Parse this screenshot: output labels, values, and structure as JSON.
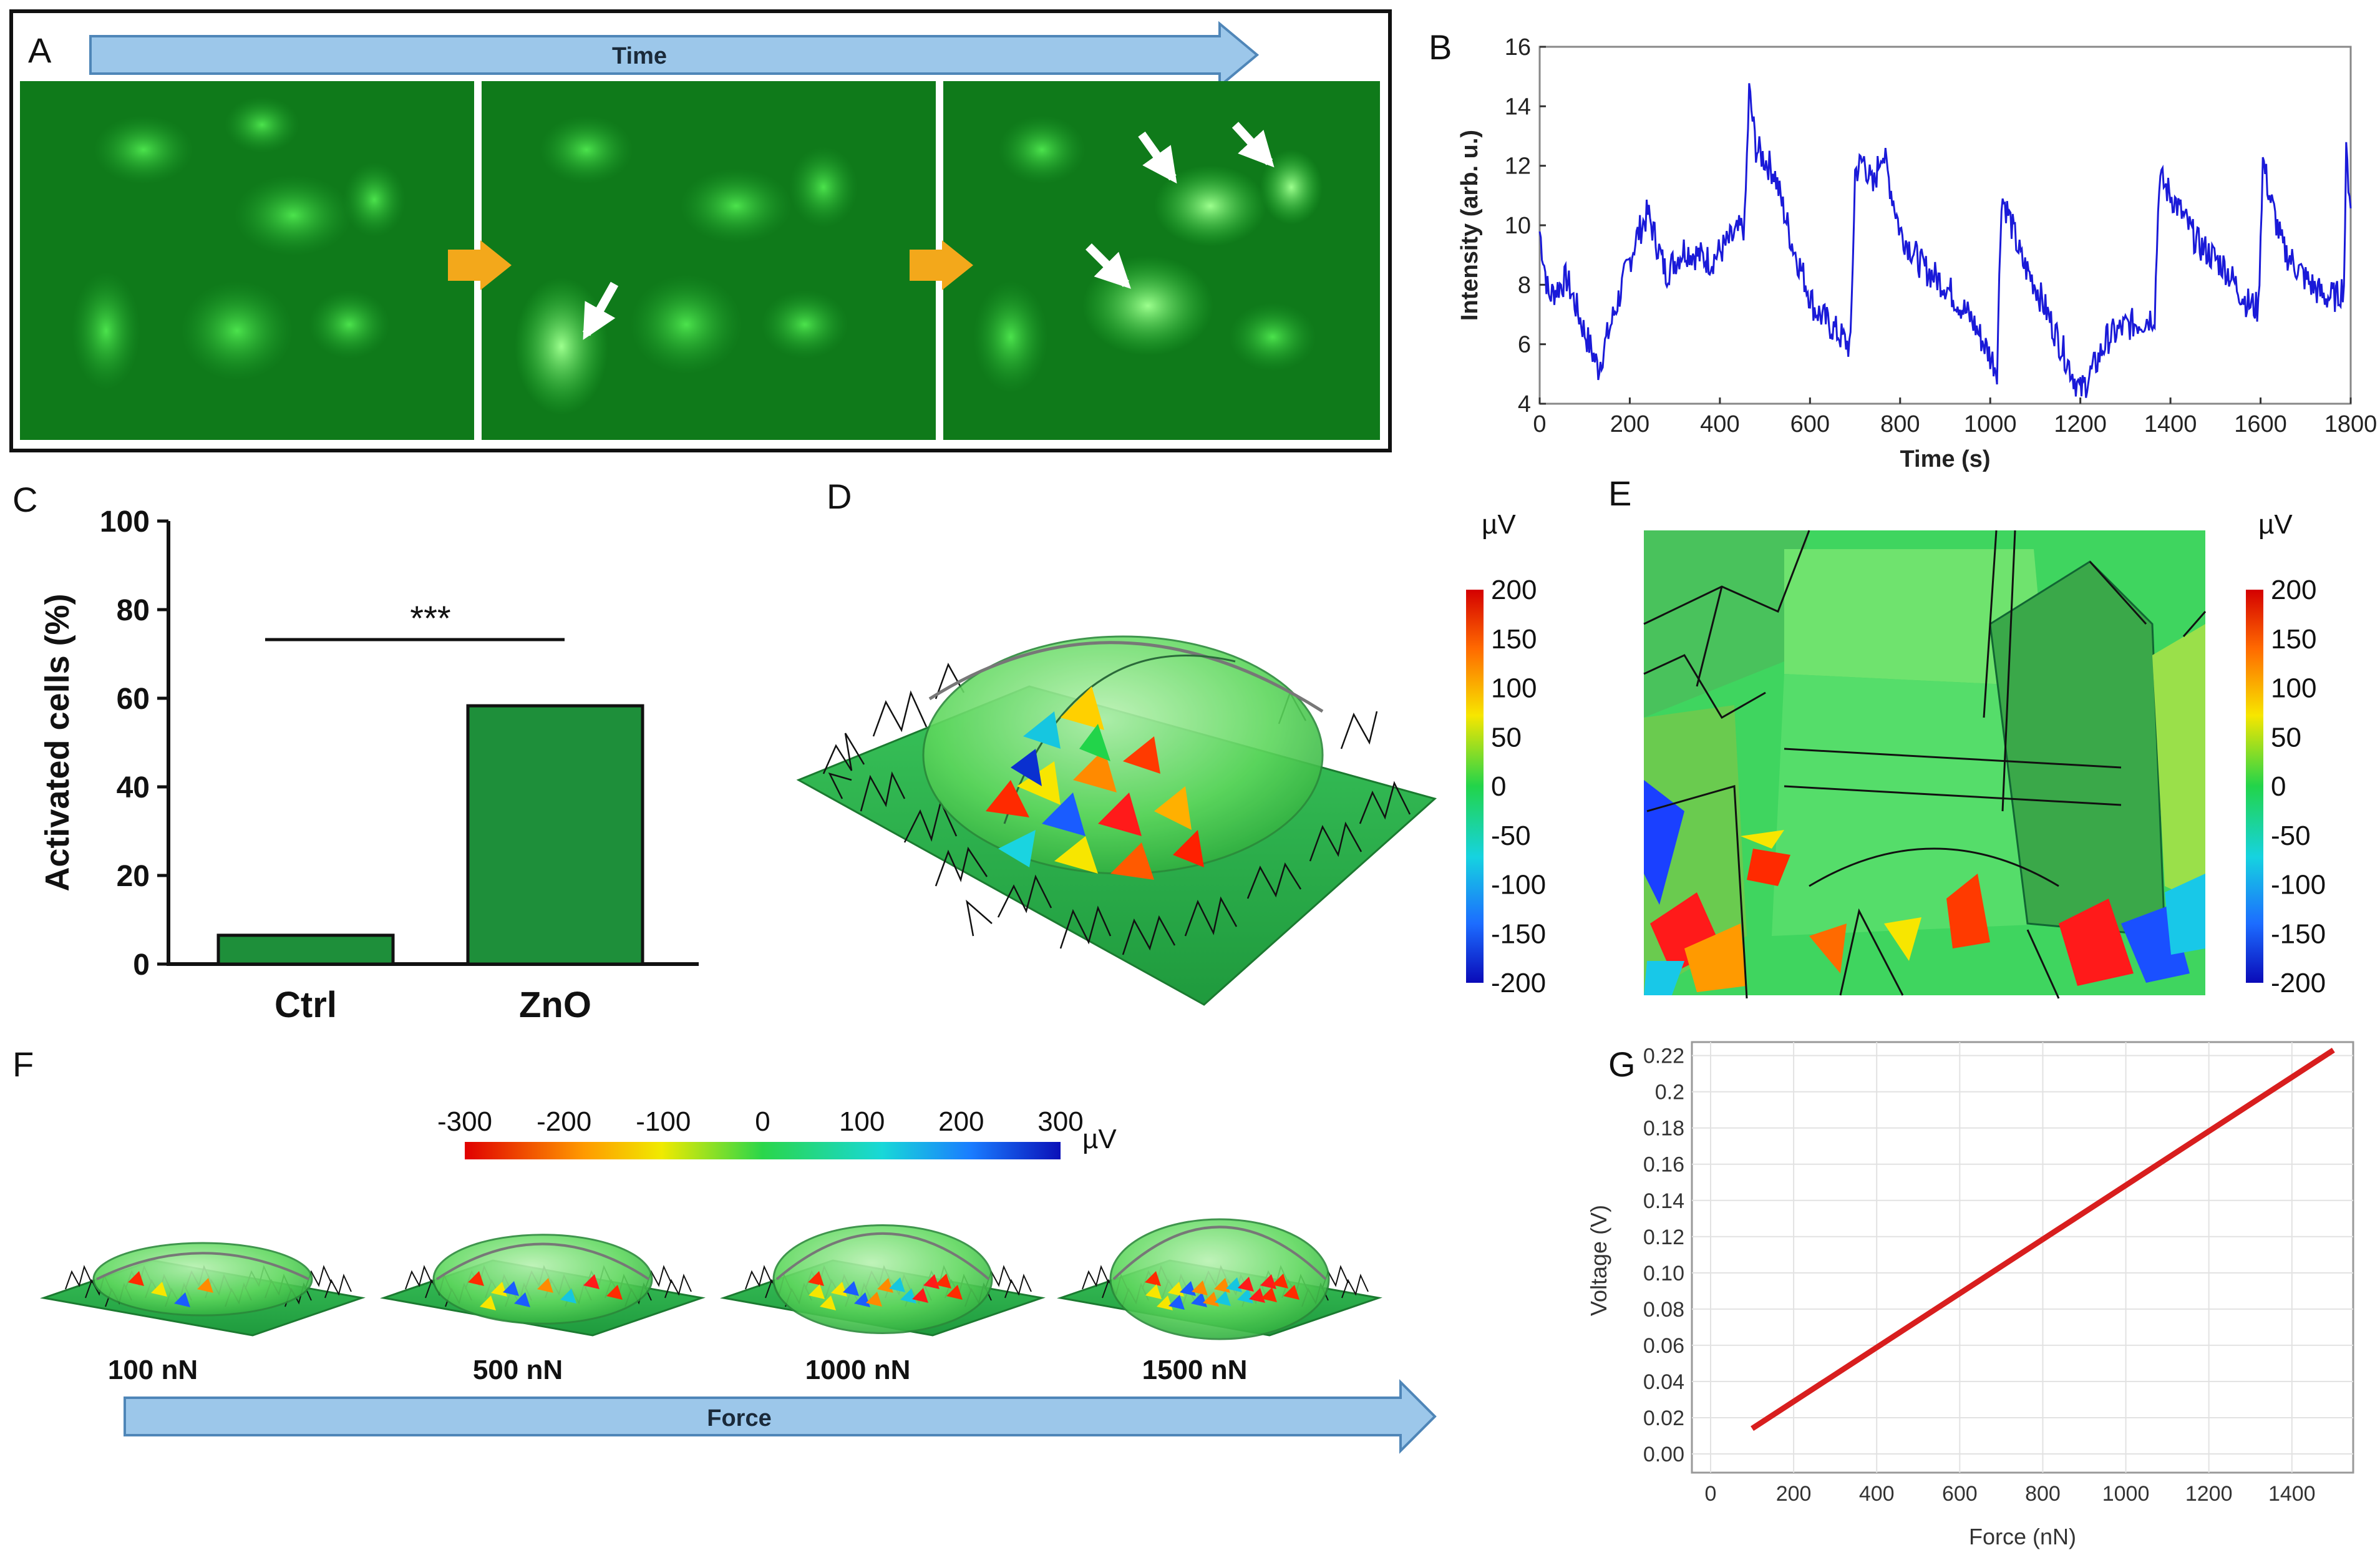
{
  "panels": {
    "A": {
      "label": "A",
      "arrow_text": "Time"
    },
    "B": {
      "label": "B"
    },
    "C": {
      "label": "C"
    },
    "D": {
      "label": "D",
      "unit": "µV",
      "ticks": [
        "200",
        "150",
        "100",
        "50",
        "0",
        "-50",
        "-100",
        "-150",
        "-200"
      ]
    },
    "E": {
      "label": "E",
      "unit": "µV",
      "ticks": [
        "200",
        "150",
        "100",
        "50",
        "0",
        "-50",
        "-100",
        "-150",
        "-200"
      ]
    },
    "F": {
      "label": "F",
      "unit": "µV",
      "ticks": [
        "-300",
        "-200",
        "-100",
        "0",
        "100",
        "200",
        "300"
      ],
      "forces": [
        "100 nN",
        "500 nN",
        "1000 nN",
        "1500 nN"
      ],
      "arrow_text": "Force"
    },
    "G": {
      "label": "G"
    }
  },
  "colors": {
    "blue_arrow": "#9cc7ea",
    "orange_arrow": "#f3a81b",
    "trace": "#1a1ad8",
    "bar_fill": "#1e8f3a",
    "line_red": "#d81e1e",
    "micro_bg": "#0f7a1a"
  },
  "chart_data": [
    {
      "id": "B",
      "type": "line",
      "xlabel": "Time (s)",
      "ylabel": "Intensity (arb. u.)",
      "xlim": [
        0,
        1800
      ],
      "ylim": [
        4,
        16
      ],
      "xticks": [
        "0",
        "200",
        "400",
        "600",
        "800",
        "1000",
        "1200",
        "1400",
        "1600",
        "1800"
      ],
      "yticks": [
        "4",
        "6",
        "8",
        "10",
        "12",
        "14",
        "16"
      ],
      "anchors": [
        [
          0,
          9.8
        ],
        [
          20,
          7.6
        ],
        [
          60,
          8.2
        ],
        [
          100,
          6.4
        ],
        [
          130,
          5.2
        ],
        [
          180,
          7.8
        ],
        [
          215,
          9.6
        ],
        [
          240,
          10.4
        ],
        [
          280,
          8.4
        ],
        [
          320,
          9.2
        ],
        [
          380,
          8.8
        ],
        [
          430,
          9.6
        ],
        [
          455,
          10.0
        ],
        [
          465,
          14.5
        ],
        [
          480,
          12.6
        ],
        [
          520,
          11.8
        ],
        [
          560,
          9.4
        ],
        [
          610,
          7.2
        ],
        [
          660,
          6.4
        ],
        [
          690,
          5.9
        ],
        [
          700,
          11.8
        ],
        [
          720,
          12.2
        ],
        [
          740,
          11.2
        ],
        [
          760,
          12.6
        ],
        [
          800,
          9.8
        ],
        [
          850,
          8.6
        ],
        [
          900,
          8.0
        ],
        [
          960,
          6.8
        ],
        [
          1000,
          5.6
        ],
        [
          1015,
          5.2
        ],
        [
          1025,
          11.0
        ],
        [
          1040,
          10.4
        ],
        [
          1070,
          8.8
        ],
        [
          1100,
          8.0
        ],
        [
          1150,
          6.2
        ],
        [
          1200,
          4.4
        ],
        [
          1230,
          5.2
        ],
        [
          1260,
          6.2
        ],
        [
          1300,
          6.6
        ],
        [
          1340,
          6.8
        ],
        [
          1365,
          7.0
        ],
        [
          1375,
          11.6
        ],
        [
          1410,
          10.8
        ],
        [
          1460,
          9.4
        ],
        [
          1520,
          8.6
        ],
        [
          1570,
          7.4
        ],
        [
          1595,
          7.2
        ],
        [
          1605,
          12.2
        ],
        [
          1620,
          11.0
        ],
        [
          1650,
          9.2
        ],
        [
          1700,
          8.2
        ],
        [
          1740,
          7.6
        ],
        [
          1770,
          7.6
        ],
        [
          1785,
          8.0
        ],
        [
          1790,
          12.3
        ],
        [
          1800,
          10.8
        ]
      ],
      "note": "noisy fluorescence trace; anchors are read from the plot, fine jitter added"
    },
    {
      "id": "C",
      "type": "bar",
      "categories": [
        "Ctrl",
        "ZnO"
      ],
      "values": [
        6.5,
        58.3
      ],
      "ylabel": "Activated cells (%)",
      "ylim": [
        0,
        100
      ],
      "yticks": [
        "0",
        "20",
        "40",
        "60",
        "80",
        "100"
      ],
      "annotation": "***"
    },
    {
      "id": "G",
      "type": "line",
      "xlabel": "Force (nN)",
      "ylabel": "Voltage (V)",
      "xlim": [
        0,
        1500
      ],
      "ylim": [
        0,
        0.22
      ],
      "xticks": [
        "0",
        "200",
        "400",
        "600",
        "800",
        "1000",
        "1200",
        "1400"
      ],
      "yticks": [
        "0.00",
        "0.02",
        "0.04",
        "0.06",
        "0.08",
        "0.10",
        "0.12",
        "0.14",
        "0.16",
        "0.18",
        "0.2",
        "0.22"
      ],
      "x": [
        100,
        1500
      ],
      "y": [
        0.014,
        0.223
      ]
    }
  ]
}
